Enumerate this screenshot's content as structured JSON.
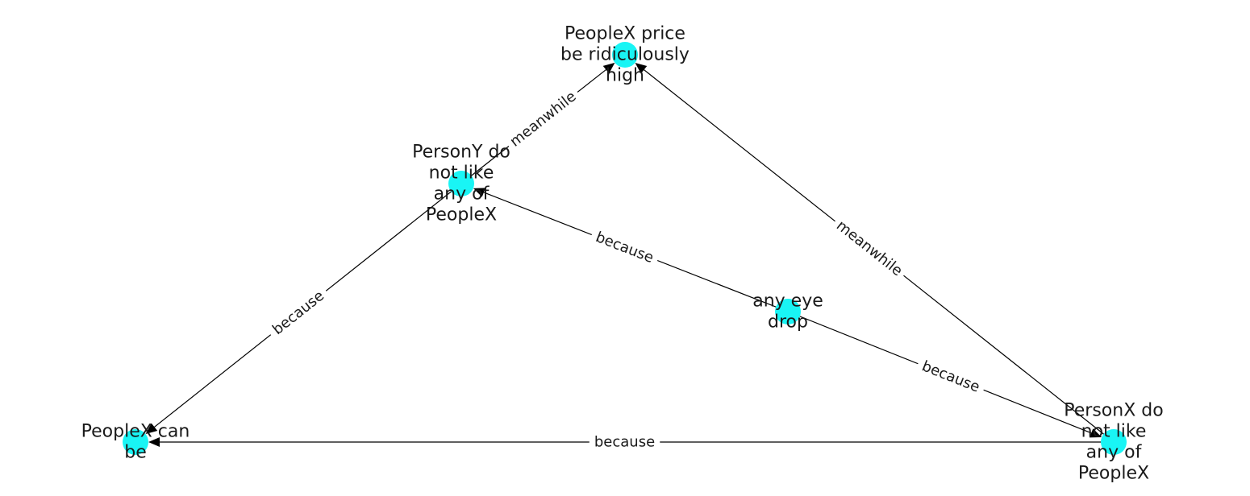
{
  "colors": {
    "node": "#19f5f5",
    "edge": "#000000",
    "text": "#1a1a1a"
  },
  "nodes": [
    {
      "id": "n1",
      "lines": [
        "PeopleX price",
        "be ridiculously",
        "high"
      ]
    },
    {
      "id": "n2",
      "lines": [
        "PersonY do",
        "not like",
        "any of",
        "PeopleX"
      ]
    },
    {
      "id": "n3",
      "lines": [
        "any eye",
        "drop"
      ]
    },
    {
      "id": "n4",
      "lines": [
        "PeopleX can",
        "be"
      ]
    },
    {
      "id": "n5",
      "lines": [
        "PersonX do",
        "not like",
        "any of",
        "PeopleX"
      ]
    }
  ],
  "edges": [
    {
      "from": "n2",
      "to": "n1",
      "label": "meanwhile"
    },
    {
      "from": "n5",
      "to": "n1",
      "label": "meanwhile"
    },
    {
      "from": "n3",
      "to": "n2",
      "label": "because"
    },
    {
      "from": "n2",
      "to": "n4",
      "label": "because"
    },
    {
      "from": "n3",
      "to": "n5",
      "label": "because"
    },
    {
      "from": "n5",
      "to": "n4",
      "label": "because"
    }
  ]
}
